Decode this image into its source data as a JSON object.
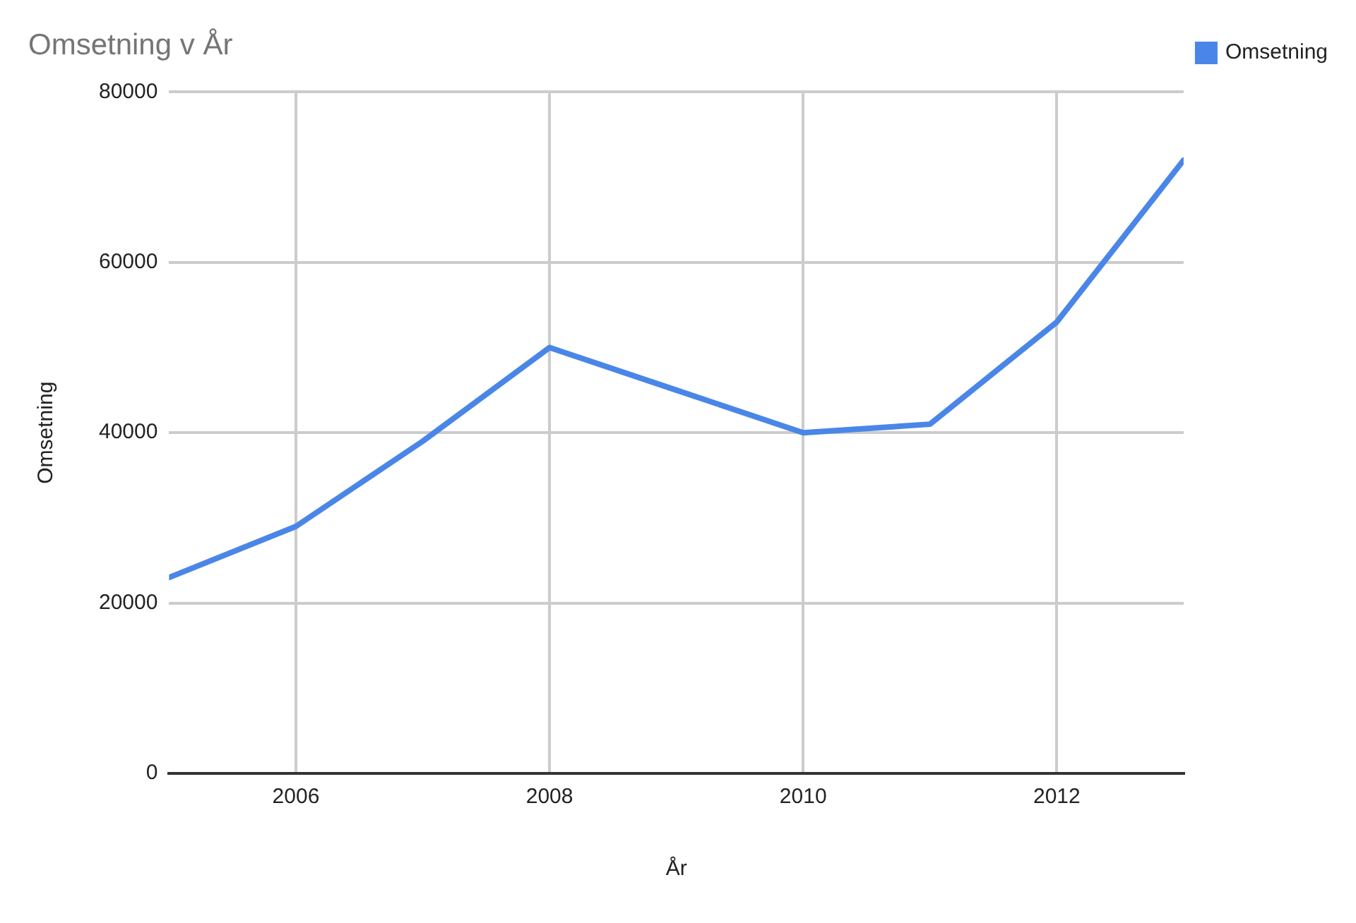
{
  "chart_data": {
    "type": "line",
    "title": "Omsetning v År",
    "xlabel": "År",
    "ylabel": "Omsetning",
    "x": [
      2005,
      2006,
      2007,
      2008,
      2009,
      2010,
      2011,
      2012,
      2013
    ],
    "series": [
      {
        "name": "Omsetning",
        "color": "#4a86e8",
        "values": [
          23000,
          29000,
          39000,
          50000,
          45000,
          40000,
          41000,
          53000,
          72000
        ]
      }
    ],
    "xlim": [
      2005,
      2013
    ],
    "xticks": [
      2006,
      2008,
      2010,
      2012
    ],
    "ylim": [
      0,
      80000
    ],
    "yticks": [
      0,
      20000,
      40000,
      60000,
      80000
    ],
    "grid": true,
    "legend": "top right",
    "marker": "none",
    "line_style": "solid"
  }
}
